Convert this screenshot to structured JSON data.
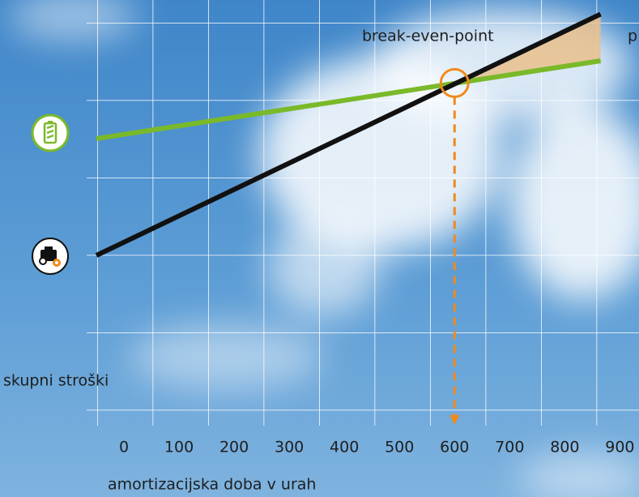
{
  "chart_data": {
    "type": "line",
    "xlabel": "amortizacijska doba v urah",
    "ylabel": "skupni stroški",
    "xlim": [
      -50,
      970
    ],
    "xticks": [
      0,
      100,
      200,
      300,
      400,
      500,
      600,
      700,
      800,
      900
    ],
    "ylim": [
      0,
      5.25
    ],
    "series": [
      {
        "color": "#7ab929",
        "x": [
          -50,
          865
        ],
        "values": [
          3.5,
          4.5
        ]
      },
      {
        "color": "#111111",
        "x": [
          -50,
          865
        ],
        "values": [
          2.0,
          5.1
        ]
      }
    ],
    "annotations": [
      {
        "text": "break-even-point",
        "x": 600
      },
      {
        "text": "p"
      }
    ],
    "savings_color": "#e9c08c",
    "marker_color": "#f08a1c"
  }
}
